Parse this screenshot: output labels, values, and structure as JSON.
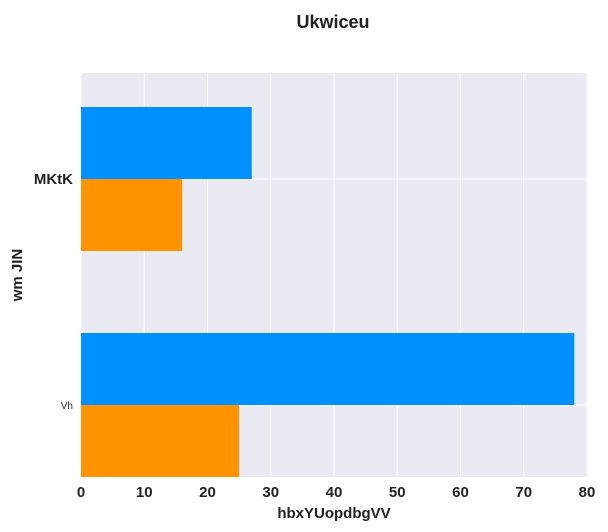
{
  "chart_data": {
    "type": "bar",
    "orientation": "horizontal",
    "title": "Ukwiceu",
    "xlabel": "hbxYUopdbgVV",
    "ylabel": "wm JIN",
    "categories": [
      "MKtK",
      "Vh"
    ],
    "series": [
      {
        "values": [
          27,
          78
        ],
        "color": "#0090ff"
      },
      {
        "values": [
          16,
          25
        ],
        "color": "#ff9400"
      }
    ],
    "xlim": [
      0,
      80
    ],
    "xticks": [
      "0",
      "10",
      "20",
      "30",
      "40",
      "50",
      "60",
      "70",
      "80"
    ],
    "grid": true,
    "legend": "none",
    "background": "#e9eaf2"
  }
}
